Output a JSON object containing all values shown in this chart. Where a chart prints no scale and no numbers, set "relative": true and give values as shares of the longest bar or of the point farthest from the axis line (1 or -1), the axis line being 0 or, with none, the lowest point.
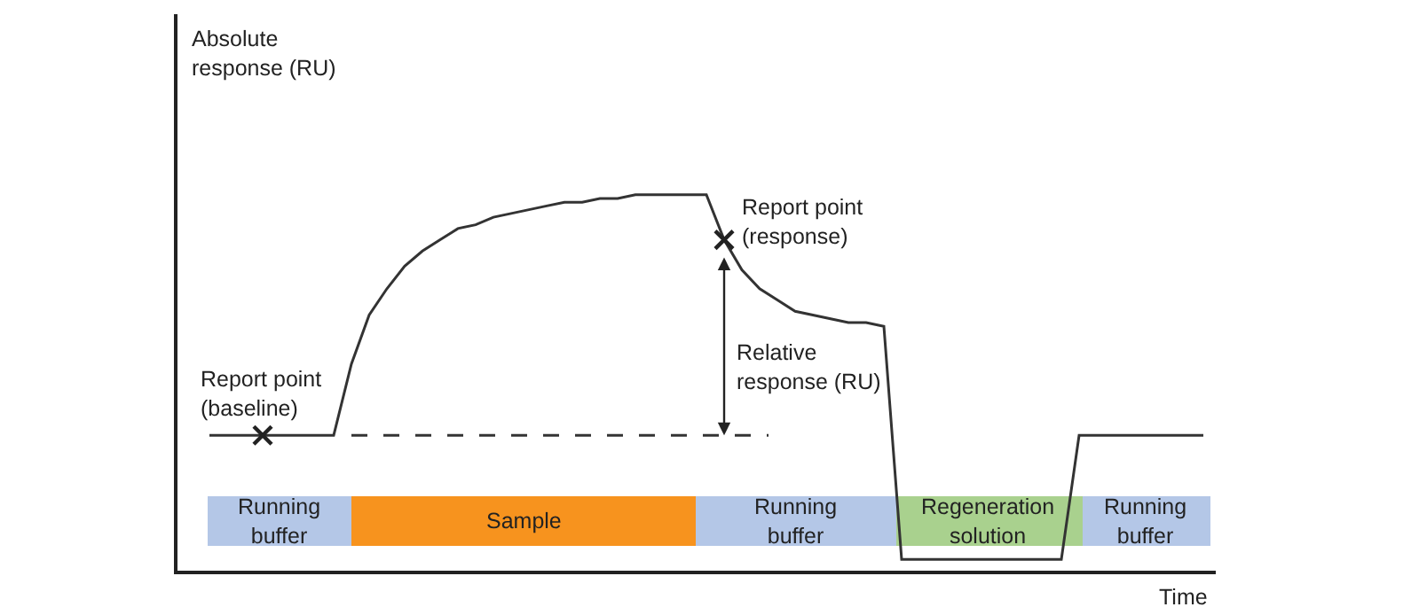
{
  "chart_data": {
    "type": "line",
    "relative": true,
    "xlabel": "Time",
    "categories": [
      null,
      null,
      null,
      null,
      null,
      null,
      null,
      null,
      null,
      null,
      null,
      null,
      null,
      null,
      null,
      null,
      null,
      null,
      null,
      null,
      null,
      null,
      null,
      null,
      null,
      null,
      null,
      null,
      null,
      null,
      null,
      null,
      null,
      null,
      null,
      null,
      null,
      null,
      null,
      null,
      null,
      null,
      null,
      null,
      null,
      null,
      null,
      null,
      null,
      null,
      null,
      null,
      null,
      null,
      null,
      null,
      null
    ],
    "series": [
      {
        "color": "#333333",
        "values": [
          0.36,
          0.36,
          0.36,
          0.36,
          0.36,
          0.36,
          0.36,
          0.36,
          0.55,
          0.68,
          0.75,
          0.81,
          0.85,
          0.88,
          0.91,
          0.92,
          0.94,
          0.95,
          0.96,
          0.97,
          0.98,
          0.98,
          0.99,
          0.99,
          1,
          1,
          1,
          1,
          1,
          0.88,
          0.8,
          0.75,
          0.72,
          0.69,
          0.68,
          0.67,
          0.66,
          0.66,
          0.65,
          0.03,
          0.03,
          0.03,
          0.03,
          0.03,
          0.03,
          0.03,
          0.03,
          0.03,
          0.03,
          0.36,
          0.36,
          0.36,
          0.36,
          0.36,
          0.36,
          0.36,
          0.36
        ]
      }
    ],
    "ref_lines": [
      {
        "axis": "y",
        "value": 0.36,
        "line_style": "dashed",
        "color": "#333333"
      }
    ],
    "annotations": [
      "Absolute\nresponse (RU)",
      "Report point\n(baseline)",
      "Report point\n(response)",
      "Relative\nresponse (RU)",
      "Running\nbuffer",
      "Sample",
      "Running\nbuffer",
      "Regeneration\nsolution",
      "Running\nbuffer"
    ],
    "legend": false
  }
}
